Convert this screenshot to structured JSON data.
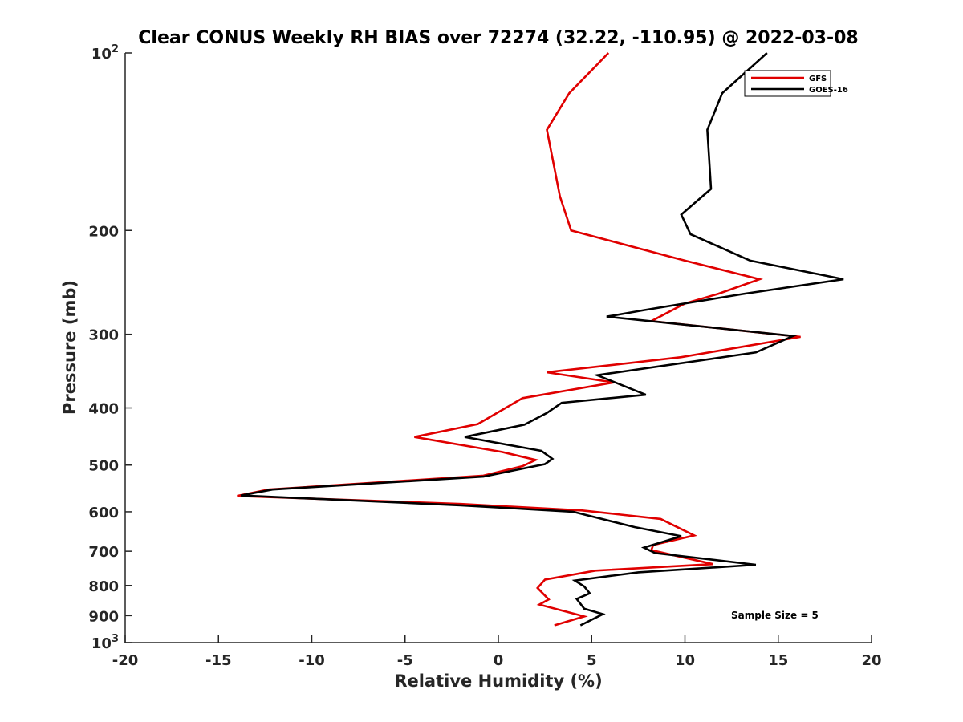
{
  "chart_data": {
    "type": "line",
    "title": "Clear CONUS Weekly RH BIAS over 72274 (32.22, -110.95) @ 2022-03-08",
    "xlabel": "Relative Humidity (%)",
    "ylabel": "Pressure (mb)",
    "xlim": [
      -20,
      20
    ],
    "ylim": [
      1000,
      100
    ],
    "y_scale": "log",
    "y_reversed": true,
    "grid": false,
    "legend_position": "top-right",
    "x_ticks": [
      "-20",
      "-15",
      "-10",
      "-5",
      "0",
      "5",
      "10",
      "15",
      "20"
    ],
    "y_ticks": [
      {
        "value": 100,
        "label": "10",
        "sup": "2"
      },
      {
        "value": 200,
        "label": "200"
      },
      {
        "value": 300,
        "label": "300"
      },
      {
        "value": 400,
        "label": "400"
      },
      {
        "value": 500,
        "label": "500"
      },
      {
        "value": 600,
        "label": "600"
      },
      {
        "value": 700,
        "label": "700"
      },
      {
        "value": 800,
        "label": "800"
      },
      {
        "value": 900,
        "label": "900"
      },
      {
        "value": 1000,
        "label": "10",
        "sup": "3"
      }
    ],
    "annotation": "Sample Size = 5",
    "series": [
      {
        "name": "GFS",
        "color": "#e00000",
        "points": [
          [
            5.9,
            100
          ],
          [
            3.8,
            117
          ],
          [
            2.6,
            135
          ],
          [
            3.3,
            175
          ],
          [
            3.9,
            200
          ],
          [
            10.0,
            225
          ],
          [
            14.0,
            242
          ],
          [
            11.8,
            256
          ],
          [
            10.0,
            266
          ],
          [
            8.2,
            285
          ],
          [
            16.2,
            303
          ],
          [
            9.8,
            328
          ],
          [
            2.6,
            348
          ],
          [
            6.2,
            362
          ],
          [
            1.3,
            385
          ],
          [
            -1.1,
            426
          ],
          [
            -4.5,
            448
          ],
          [
            0.2,
            475
          ],
          [
            2.0,
            490
          ],
          [
            1.3,
            502
          ],
          [
            -0.8,
            521
          ],
          [
            -12.3,
            550
          ],
          [
            -14.0,
            564
          ],
          [
            -2.0,
            582
          ],
          [
            4.5,
            597
          ],
          [
            8.7,
            617
          ],
          [
            10.5,
            658
          ],
          [
            8.3,
            683
          ],
          [
            8.2,
            697
          ],
          [
            11.5,
            736
          ],
          [
            5.2,
            755
          ],
          [
            2.5,
            782
          ],
          [
            2.1,
            808
          ],
          [
            2.7,
            845
          ],
          [
            2.2,
            862
          ],
          [
            4.6,
            903
          ],
          [
            3.0,
            935
          ]
        ]
      },
      {
        "name": "GOES-16",
        "color": "#000000",
        "points": [
          [
            14.4,
            100
          ],
          [
            12.0,
            117
          ],
          [
            11.2,
            135
          ],
          [
            11.4,
            170
          ],
          [
            9.8,
            188
          ],
          [
            10.3,
            203
          ],
          [
            13.5,
            225
          ],
          [
            18.5,
            242
          ],
          [
            13.2,
            256
          ],
          [
            7.8,
            273
          ],
          [
            5.8,
            280
          ],
          [
            15.8,
            302
          ],
          [
            13.8,
            322
          ],
          [
            5.3,
            352
          ],
          [
            7.9,
            380
          ],
          [
            3.4,
            392
          ],
          [
            2.6,
            408
          ],
          [
            1.4,
            427
          ],
          [
            -1.8,
            448
          ],
          [
            2.3,
            473
          ],
          [
            2.9,
            488
          ],
          [
            2.5,
            498
          ],
          [
            -0.8,
            523
          ],
          [
            -12.1,
            550
          ],
          [
            -13.8,
            563
          ],
          [
            -2.0,
            585
          ],
          [
            4.0,
            600
          ],
          [
            7.3,
            637
          ],
          [
            9.8,
            660
          ],
          [
            7.8,
            690
          ],
          [
            8.4,
            705
          ],
          [
            13.8,
            738
          ],
          [
            7.5,
            760
          ],
          [
            4.1,
            785
          ],
          [
            4.6,
            803
          ],
          [
            4.9,
            825
          ],
          [
            4.2,
            843
          ],
          [
            4.6,
            876
          ],
          [
            5.6,
            895
          ],
          [
            4.4,
            935
          ]
        ]
      }
    ]
  }
}
